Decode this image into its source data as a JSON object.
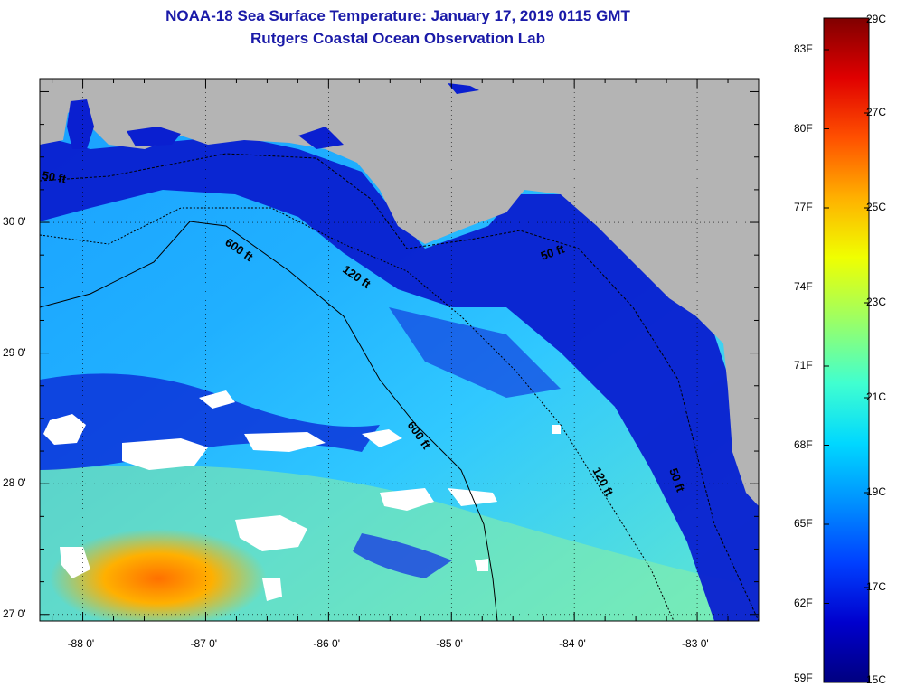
{
  "title": "NOAA-18 Sea Surface Temperature:  January 17, 2019 0115 GMT",
  "subtitle": "Rutgers Coastal Ocean Observation Lab",
  "map": {
    "lon_range": [
      -88.35,
      -82.5
    ],
    "lat_range": [
      26.95,
      31.1
    ],
    "lon_ticks": [
      {
        "value": -88,
        "label": "-88 0'"
      },
      {
        "value": -87,
        "label": "-87 0'"
      },
      {
        "value": -86,
        "label": "-86 0'"
      },
      {
        "value": -85,
        "label": "-85 0'"
      },
      {
        "value": -84,
        "label": "-84 0'"
      },
      {
        "value": -83,
        "label": "-83 0'"
      }
    ],
    "lat_ticks": [
      {
        "value": 30,
        "label": "30 0'"
      },
      {
        "value": 29,
        "label": "29 0'"
      },
      {
        "value": 28,
        "label": "28 0'"
      },
      {
        "value": 27,
        "label": "27 0'"
      }
    ],
    "contour_labels": [
      "50 ft",
      "600 ft",
      "120 ft",
      "50 ft",
      "600 ft",
      "120 ft",
      "50 ft"
    ],
    "colors": {
      "land": "#b4b4b4",
      "cloud": "#ffffff",
      "frame": "#000000"
    }
  },
  "colorbar": {
    "min_c": 15,
    "max_c": 29,
    "celsius_labels": [
      "29C",
      "27C",
      "25C",
      "23C",
      "21C",
      "19C",
      "17C",
      "15C"
    ],
    "fahrenheit_labels": [
      "83F",
      "80F",
      "77F",
      "74F",
      "71F",
      "68F",
      "65F",
      "62F",
      "59F"
    ],
    "stops": [
      "#000080",
      "#0000cd",
      "#0040ff",
      "#0090ff",
      "#00d8ff",
      "#40ffd0",
      "#a0ff60",
      "#f0ff00",
      "#ffb000",
      "#ff5000",
      "#e00000",
      "#800000"
    ]
  }
}
